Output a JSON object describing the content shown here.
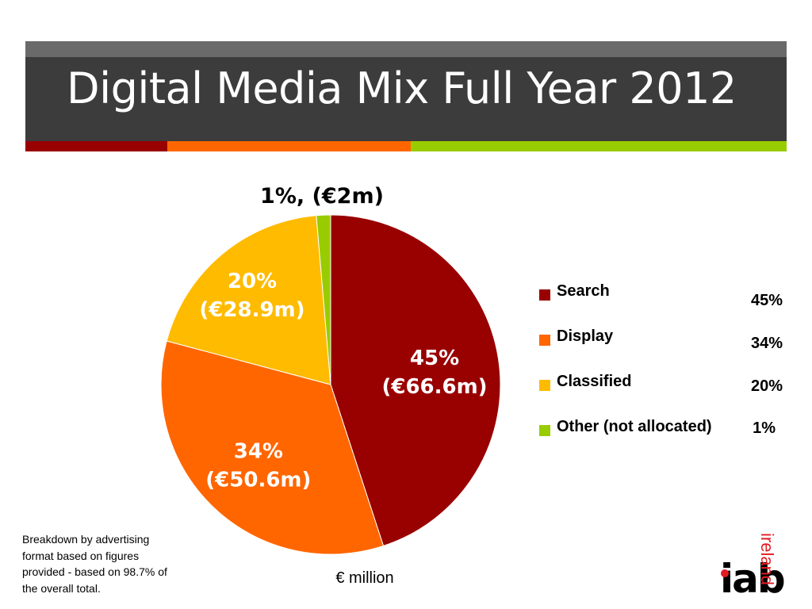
{
  "slide": {
    "title": "Digital Media Mix Full Year 2012",
    "stripe_colors": [
      "#990000",
      "#ff6600",
      "#99cc00"
    ],
    "title_bg": "#3c3c3c",
    "title_top_band": "#6a6a6a"
  },
  "chart_data": {
    "type": "pie",
    "title": "",
    "unit_label": "€ million",
    "series": [
      {
        "name": "Search",
        "value": 66.6,
        "percent": 45,
        "color": "#990000",
        "label_line1": "45%",
        "label_line2": "(€66.6m)",
        "label_color": "#ffffff",
        "legend_pct": "45%"
      },
      {
        "name": "Display",
        "value": 50.6,
        "percent": 34,
        "color": "#ff6600",
        "label_line1": "34%",
        "label_line2": "(€50.6m)",
        "label_color": "#ffffff",
        "legend_pct": "34%"
      },
      {
        "name": "Classified",
        "value": 28.9,
        "percent": 20,
        "color": "#ffbb00",
        "label_line1": "20%",
        "label_line2": "(€28.9m)",
        "label_color": "#ffffff",
        "legend_pct": "20%"
      },
      {
        "name": "Other (not allocated)",
        "value": 2,
        "percent": 1,
        "color": "#99cc00",
        "label_line1": "1%, (€2m)",
        "label_line2": "",
        "label_color": "#000000",
        "legend_pct": "1%"
      }
    ],
    "legend_placement": "right"
  },
  "footnote": "Breakdown by advertising format based on figures provided -  based on 98.7% of the overall total.",
  "logo": {
    "wordmark": "iab",
    "suffix": "ireland",
    "accent_color": "#e31b23"
  }
}
